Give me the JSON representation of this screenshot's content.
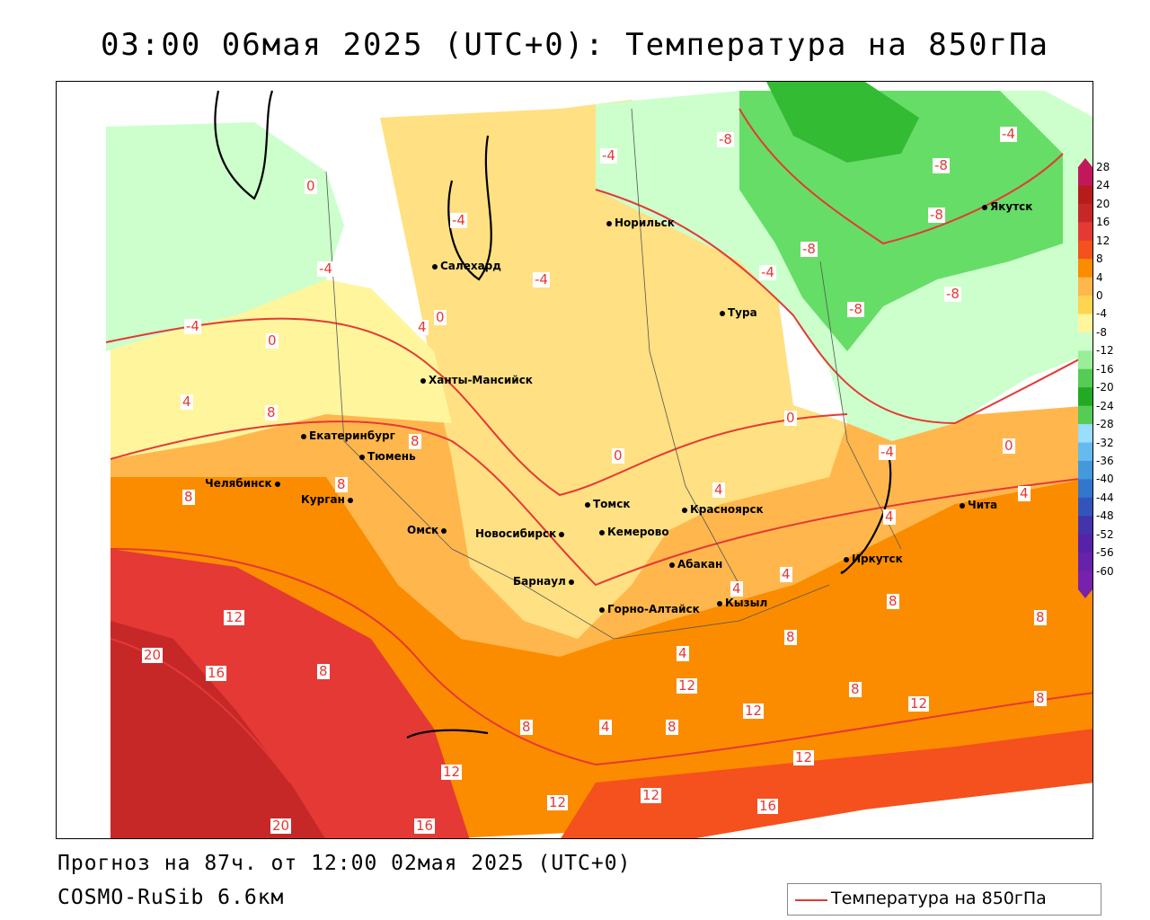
{
  "title": "03:00 06мая 2025 (UTC+0): Температура на 850гПа",
  "footer": {
    "forecast": "Прогноз на 87ч. от 12:00 02мая 2025 (UTC+0)",
    "model": "COSMO-RuSib 6.6км"
  },
  "legend": {
    "line_label": "Температура на 850гПа",
    "line_color": "#e53935"
  },
  "colorbar": {
    "ticks": [
      "28",
      "24",
      "20",
      "16",
      "12",
      "8",
      "4",
      "0",
      "-4",
      "-8",
      "-12",
      "-16",
      "-20",
      "-24",
      "-28",
      "-32",
      "-36",
      "-40",
      "-44",
      "-48",
      "-52",
      "-56",
      "-60"
    ],
    "colors": [
      "#c2185b",
      "#b71c1c",
      "#c62828",
      "#e53935",
      "#f4511e",
      "#fb8c00",
      "#ffb74d",
      "#ffd54f",
      "#fff59d",
      "#ccffcc",
      "#99ee99",
      "#55cc55",
      "#22aa22",
      "#55cc55",
      "#99ddff",
      "#66bbee",
      "#4499dd",
      "#3377cc",
      "#3355bb",
      "#4433aa",
      "#5522aa",
      "#6622aa",
      "#7722aa"
    ]
  },
  "cities": [
    {
      "name": "Норильск"
    },
    {
      "name": "Якутск"
    },
    {
      "name": "Салехард"
    },
    {
      "name": "Тура"
    },
    {
      "name": "Ханты-Мансийск"
    },
    {
      "name": "Екатеринбург"
    },
    {
      "name": "Тюмень"
    },
    {
      "name": "Челябинск"
    },
    {
      "name": "Курган"
    },
    {
      "name": "Омск"
    },
    {
      "name": "Новосибирск"
    },
    {
      "name": "Томск"
    },
    {
      "name": "Кемерово"
    },
    {
      "name": "Красноярск"
    },
    {
      "name": "Барнаул"
    },
    {
      "name": "Абакан"
    },
    {
      "name": "Горно-Алтайск"
    },
    {
      "name": "Кызыл"
    },
    {
      "name": "Иркутск"
    },
    {
      "name": "Чита"
    }
  ],
  "contour_labels": [
    "-8",
    "-4",
    "-8",
    "-8",
    "-4",
    "-8",
    "-4",
    "-8",
    "-8",
    "-4",
    "0",
    "-4",
    "-4",
    "-4",
    "0",
    "4",
    "0",
    "0",
    "4",
    "8",
    "8",
    "8",
    "4",
    "8",
    "0",
    "-4",
    "0",
    "4",
    "4",
    "4",
    "4",
    "4",
    "8",
    "12",
    "20",
    "16",
    "8",
    "12",
    "8",
    "8",
    "4",
    "12",
    "8",
    "12",
    "12",
    "8",
    "12",
    "12",
    "12",
    "16",
    "20",
    "16",
    "8",
    "8"
  ]
}
